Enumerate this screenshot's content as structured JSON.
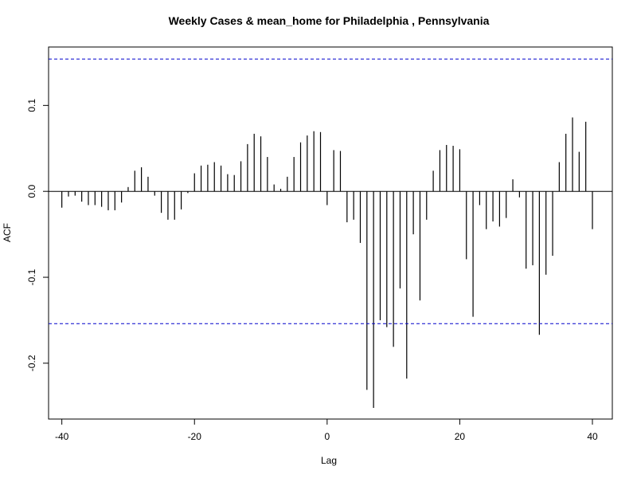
{
  "chart_data": {
    "type": "bar",
    "title": "Weekly Cases & mean_home for Philadelphia , Pennsylvania",
    "xlabel": "Lag",
    "ylabel": "ACF",
    "xlim": [
      -42,
      43
    ],
    "ylim": [
      -0.265,
      0.168
    ],
    "xticks": [
      -40,
      -20,
      0,
      20,
      40
    ],
    "xtick_labels": [
      "-40",
      "-20",
      "0",
      "20",
      "40"
    ],
    "yticks": [
      -0.2,
      -0.1,
      0.0,
      0.1
    ],
    "ytick_labels": [
      "-0.2",
      "-0.1",
      "0.0",
      "0.1"
    ],
    "confidence_limits": [
      0.154,
      -0.154
    ],
    "colors": {
      "bars": "#000000",
      "confidence": "#0000cc",
      "zero_line": "#000000"
    },
    "grid": false,
    "lags": [
      -40,
      -39,
      -38,
      -37,
      -36,
      -35,
      -34,
      -33,
      -32,
      -31,
      -30,
      -29,
      -28,
      -27,
      -26,
      -25,
      -24,
      -23,
      -22,
      -21,
      -20,
      -19,
      -18,
      -17,
      -16,
      -15,
      -14,
      -13,
      -12,
      -11,
      -10,
      -9,
      -8,
      -7,
      -6,
      -5,
      -4,
      -3,
      -2,
      -1,
      0,
      1,
      2,
      3,
      4,
      5,
      6,
      7,
      8,
      9,
      10,
      11,
      12,
      13,
      14,
      15,
      16,
      17,
      18,
      19,
      20,
      21,
      22,
      23,
      24,
      25,
      26,
      27,
      28,
      29,
      30,
      31,
      32,
      33,
      34,
      35,
      36,
      37,
      38,
      39,
      40
    ],
    "values": [
      -0.019,
      -0.006,
      -0.005,
      -0.012,
      -0.016,
      -0.016,
      -0.018,
      -0.022,
      -0.022,
      -0.013,
      0.005,
      0.024,
      0.028,
      0.017,
      -0.005,
      -0.025,
      -0.033,
      -0.033,
      -0.021,
      -0.002,
      0.021,
      0.03,
      0.031,
      0.034,
      0.03,
      0.02,
      0.019,
      0.035,
      0.055,
      0.067,
      0.064,
      0.04,
      0.008,
      0.003,
      0.017,
      0.04,
      0.057,
      0.065,
      0.07,
      0.069,
      -0.016,
      0.048,
      0.047,
      -0.036,
      -0.033,
      -0.06,
      -0.231,
      -0.252,
      -0.15,
      -0.158,
      -0.181,
      -0.113,
      -0.218,
      -0.05,
      -0.127,
      -0.033,
      0.024,
      0.048,
      0.054,
      0.053,
      0.049,
      -0.079,
      -0.146,
      -0.016,
      -0.044,
      -0.035,
      -0.041,
      -0.031,
      0.014,
      -0.007,
      -0.09,
      -0.086,
      -0.167,
      -0.097,
      -0.075,
      0.034,
      0.067,
      0.086,
      0.046,
      0.081,
      -0.044
    ]
  }
}
